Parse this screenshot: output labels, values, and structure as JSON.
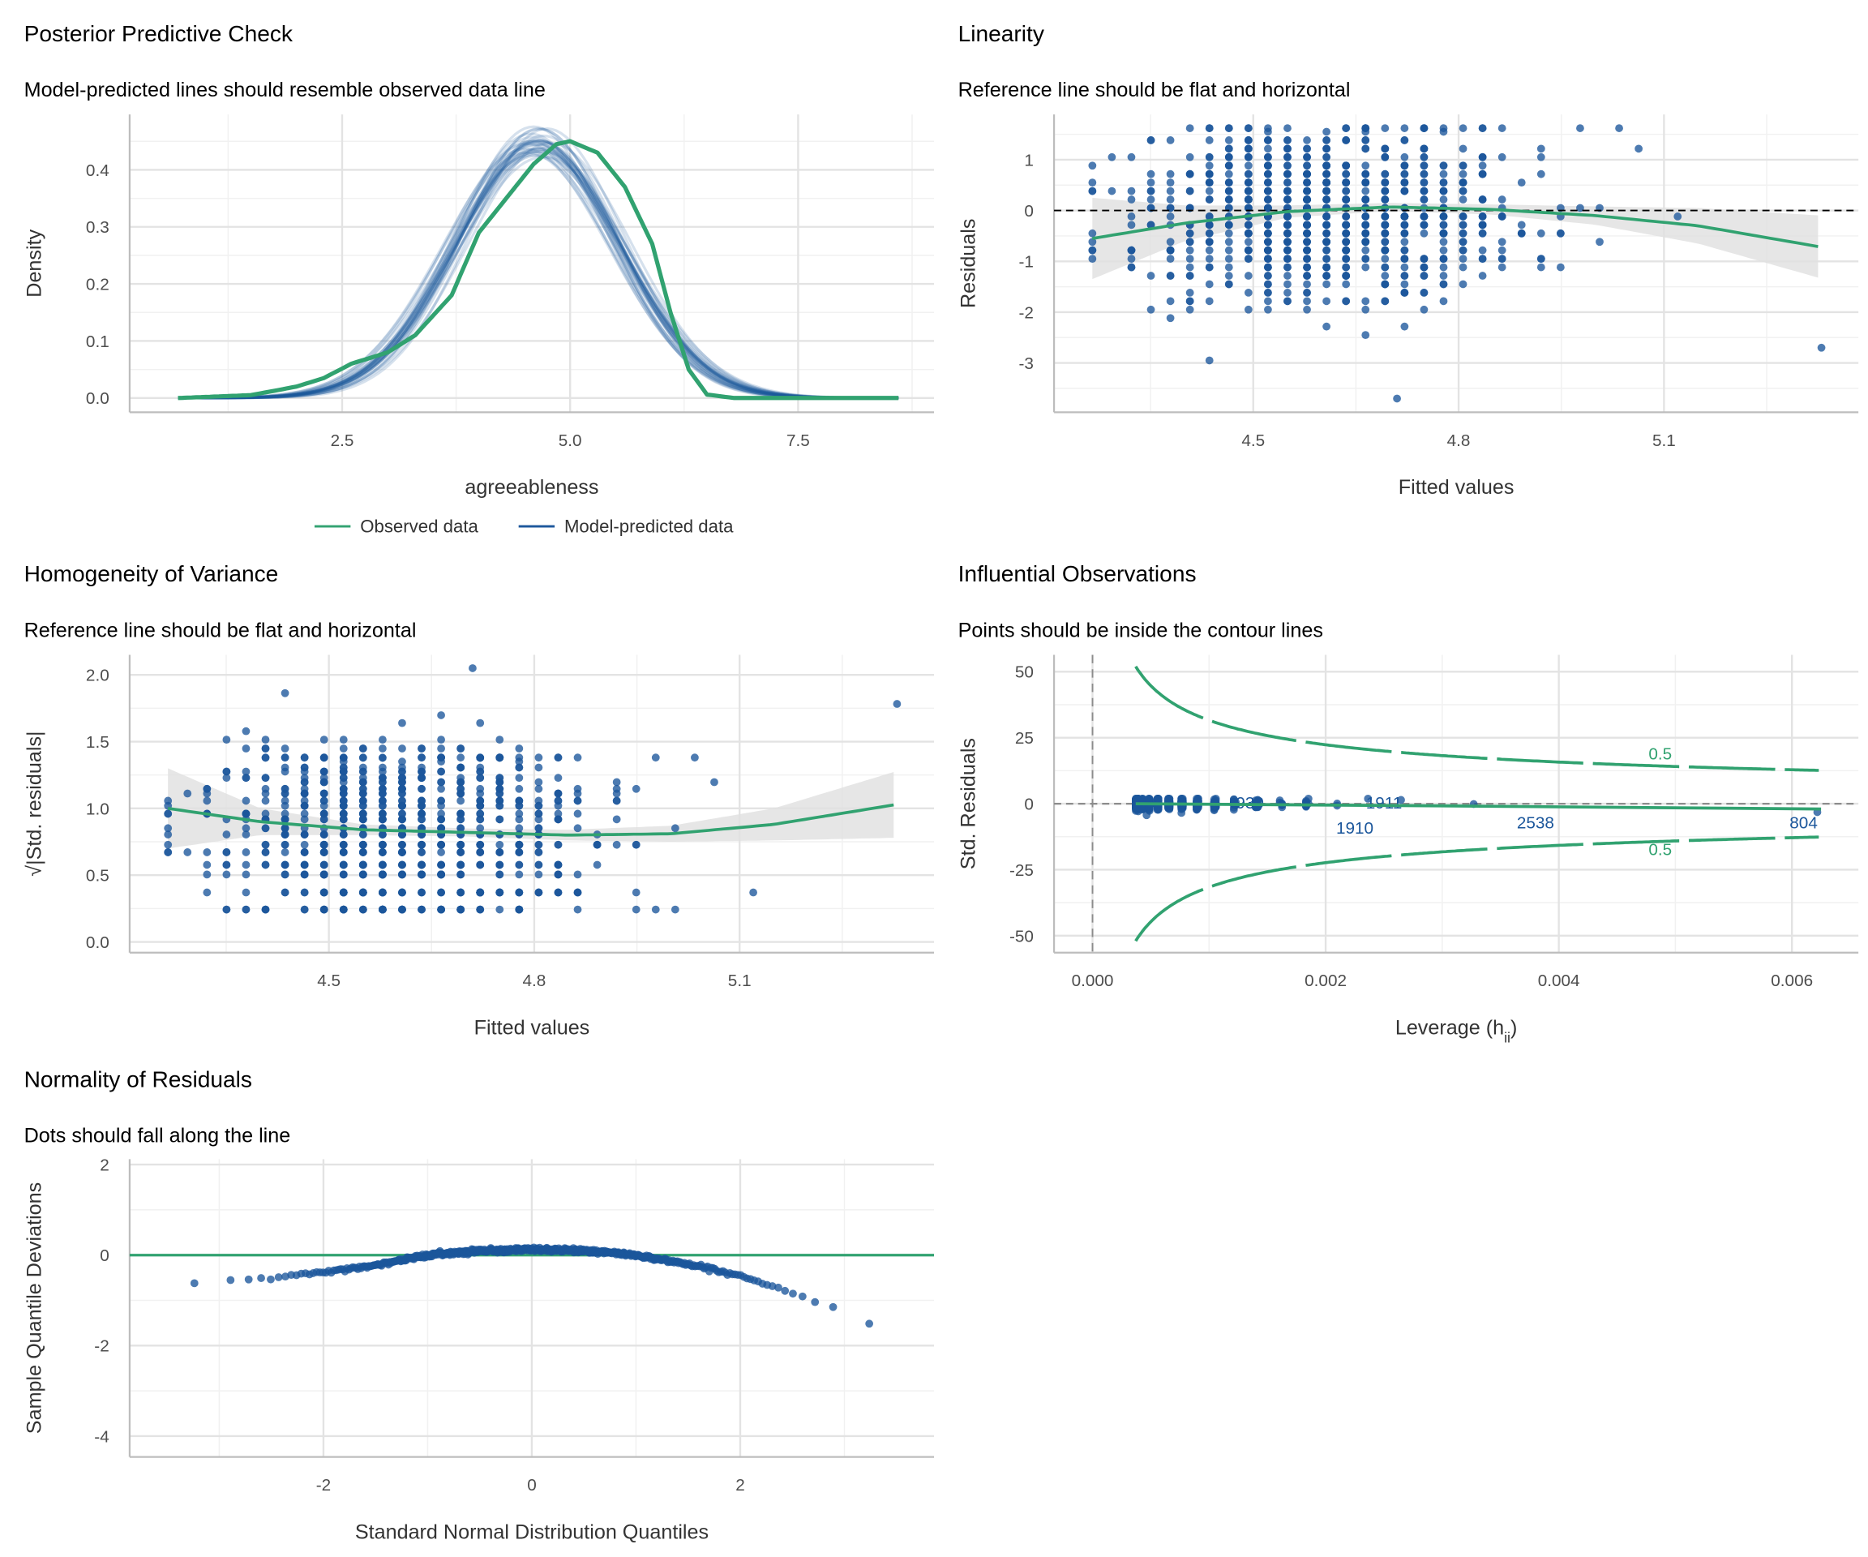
{
  "colors": {
    "green": "#31a270",
    "blue": "#1b569b",
    "grid_major": "#e3e3e3",
    "grid_minor": "#f1f1f1",
    "axis": "#bdbdbd",
    "band": "#e0e0e0",
    "ref": "#8c8c8c"
  },
  "chart_data": [
    {
      "type": "line",
      "title": "Posterior Predictive Check",
      "subtitle": "Model-predicted lines should resemble observed data line",
      "xlabel": "agreeableness",
      "ylabel": "Density",
      "xlim": [
        0.17,
        8.99
      ],
      "ylim": [
        -0.025,
        0.497
      ],
      "xticks": [
        {
          "v": 2.5,
          "label": "2.5"
        },
        {
          "v": 5.0,
          "label": "5.0"
        },
        {
          "v": 7.5,
          "label": "7.5"
        }
      ],
      "yticks": [
        {
          "v": 0,
          "label": "0.0"
        },
        {
          "v": 0.1,
          "label": "0.1"
        },
        {
          "v": 0.2,
          "label": "0.2"
        },
        {
          "v": 0.3,
          "label": "0.3"
        },
        {
          "v": 0.4,
          "label": "0.4"
        }
      ],
      "xminor": [
        1.25,
        3.75,
        6.25,
        8.75
      ],
      "yminor": [
        0.05,
        0.15,
        0.25,
        0.35,
        0.45
      ],
      "grid": true,
      "legend_position": "bottom",
      "legend": [
        {
          "name": "Observed data",
          "color": "#31a270"
        },
        {
          "name": "Model-predicted data",
          "color": "#1b569b"
        }
      ],
      "series": [
        {
          "name": "Observed data",
          "x": [
            0.7,
            1.5,
            2.0,
            2.3,
            2.6,
            3.0,
            3.3,
            3.7,
            4.0,
            4.3,
            4.6,
            4.85,
            5.0,
            5.3,
            5.6,
            5.9,
            6.1,
            6.3,
            6.5,
            6.8,
            8.6
          ],
          "y": [
            0,
            0.005,
            0.02,
            0.035,
            0.06,
            0.08,
            0.11,
            0.18,
            0.29,
            0.35,
            0.41,
            0.445,
            0.45,
            0.43,
            0.37,
            0.27,
            0.15,
            0.05,
            0.006,
            0,
            0
          ]
        },
        {
          "name": "Model-predicted data",
          "draws": 30,
          "mean": 4.65,
          "sd": 0.9,
          "x_range": [
            0.7,
            8.6
          ]
        }
      ]
    },
    {
      "type": "scatter",
      "title": "Linearity",
      "subtitle": "Reference line should be flat and horizontal",
      "xlabel": "Fitted values",
      "ylabel": "Residuals",
      "xlim": [
        4.209,
        5.384
      ],
      "ylim": [
        -3.97,
        1.89
      ],
      "xticks": [
        {
          "v": 4.5,
          "label": "4.5"
        },
        {
          "v": 4.8,
          "label": "4.8"
        },
        {
          "v": 5.1,
          "label": "5.1"
        }
      ],
      "yticks": [
        {
          "v": -3,
          "label": "-3"
        },
        {
          "v": -2,
          "label": "-2"
        },
        {
          "v": -1,
          "label": "-1"
        },
        {
          "v": 0,
          "label": "0"
        },
        {
          "v": 1,
          "label": "1"
        }
      ],
      "xminor": [
        4.35,
        4.65,
        4.95,
        5.25
      ],
      "yminor": [
        -3.5,
        -2.5,
        -1.5,
        -0.5,
        0.5,
        1.5
      ],
      "reference_line": 0,
      "smooth": {
        "x": [
          4.265,
          4.4,
          4.55,
          4.7,
          4.85,
          5.0,
          5.15,
          5.33
        ],
        "y": [
          -0.55,
          -0.25,
          -0.02,
          0.07,
          0.02,
          -0.1,
          -0.3,
          -0.72
        ],
        "ci_halfwidth": [
          0.8,
          0.35,
          0.12,
          0.08,
          0.1,
          0.18,
          0.35,
          0.62
        ]
      }
    },
    {
      "type": "scatter",
      "title": "Homogeneity of Variance",
      "subtitle": "Reference line should be flat and horizontal",
      "xlabel": "Fitted values",
      "ylabel": "√|Std. residuals|",
      "xlim": [
        4.209,
        5.384
      ],
      "ylim": [
        -0.08,
        2.15
      ],
      "xticks": [
        {
          "v": 4.5,
          "label": "4.5"
        },
        {
          "v": 4.8,
          "label": "4.8"
        },
        {
          "v": 5.1,
          "label": "5.1"
        }
      ],
      "yticks": [
        {
          "v": 0,
          "label": "0.0"
        },
        {
          "v": 0.5,
          "label": "0.5"
        },
        {
          "v": 1.0,
          "label": "1.0"
        },
        {
          "v": 1.5,
          "label": "1.5"
        },
        {
          "v": 2.0,
          "label": "2.0"
        }
      ],
      "xminor": [
        4.35,
        4.65,
        4.95,
        5.25
      ],
      "yminor": [
        0.25,
        0.75,
        1.25,
        1.75
      ],
      "smooth": {
        "x": [
          4.265,
          4.4,
          4.55,
          4.7,
          4.85,
          5.0,
          5.15,
          5.33
        ],
        "y": [
          1.0,
          0.9,
          0.84,
          0.82,
          0.8,
          0.81,
          0.88,
          1.03
        ],
        "ci_halfwidth": [
          0.3,
          0.1,
          0.04,
          0.03,
          0.04,
          0.06,
          0.12,
          0.25
        ]
      }
    },
    {
      "type": "scatter",
      "title": "Influential Observations",
      "subtitle": "Points should be inside the contour lines",
      "xlabel": "Leverage (h",
      "xlabel_sub": "ii",
      "xlabel_end": ")",
      "ylabel": "Std. Residuals",
      "xlim": [
        -0.00033,
        0.00657
      ],
      "ylim": [
        -56.4,
        56.4
      ],
      "xticks": [
        {
          "v": 0,
          "label": "0.000"
        },
        {
          "v": 0.002,
          "label": "0.002"
        },
        {
          "v": 0.004,
          "label": "0.004"
        },
        {
          "v": 0.006,
          "label": "0.006"
        }
      ],
      "yticks": [
        {
          "v": -50,
          "label": "-50"
        },
        {
          "v": -25,
          "label": "-25"
        },
        {
          "v": 0,
          "label": "0"
        },
        {
          "v": 25,
          "label": "25"
        },
        {
          "v": 50,
          "label": "50"
        }
      ],
      "xminor": [
        0.001,
        0.003,
        0.005
      ],
      "yminor": [
        -37.5,
        -12.5,
        12.5,
        37.5
      ],
      "cook_contour": {
        "level": 0.5,
        "label": "0.5",
        "params": 2,
        "h_range": [
          0.00037,
          0.00625
        ]
      },
      "labelled_points": [
        {
          "id": "930",
          "h": 0.00135,
          "resid": 0.5
        },
        {
          "id": "1911",
          "h": 0.0025,
          "resid": 0.5
        },
        {
          "id": "1910",
          "h": 0.00225,
          "resid": -9
        },
        {
          "id": "2538",
          "h": 0.0038,
          "resid": -7
        },
        {
          "id": "804",
          "h": 0.0061,
          "resid": -7
        }
      ]
    },
    {
      "type": "scatter",
      "title": "Normality of Residuals",
      "subtitle": "Dots should fall along the line",
      "xlabel": "Standard Normal Distribution Quantiles",
      "ylabel": "Sample Quantile Deviations",
      "xlim": [
        -3.86,
        3.86
      ],
      "ylim": [
        -4.46,
        2.12
      ],
      "xticks": [
        {
          "v": -2,
          "label": "-2"
        },
        {
          "v": 0,
          "label": "0"
        },
        {
          "v": 2,
          "label": "2"
        }
      ],
      "yticks": [
        {
          "v": -4,
          "label": "-4"
        },
        {
          "v": -2,
          "label": "-2"
        },
        {
          "v": 0,
          "label": "0"
        },
        {
          "v": 2,
          "label": "2"
        }
      ],
      "xminor": [
        -3,
        -1,
        1,
        3
      ],
      "yminor": [
        -3,
        -1,
        1
      ],
      "reference_line": 0,
      "deviation_curve": {
        "x": [
          -3.5,
          -3.0,
          -2.5,
          -2.0,
          -1.5,
          -1.0,
          -0.5,
          0,
          0.5,
          1.0,
          1.5,
          2.0,
          2.5,
          3.0,
          3.4
        ],
        "y": [
          -0.75,
          -0.58,
          -0.5,
          -0.38,
          -0.22,
          0.0,
          0.1,
          0.12,
          0.1,
          0.0,
          -0.2,
          -0.45,
          -0.85,
          -1.25,
          -1.7
        ]
      }
    }
  ]
}
